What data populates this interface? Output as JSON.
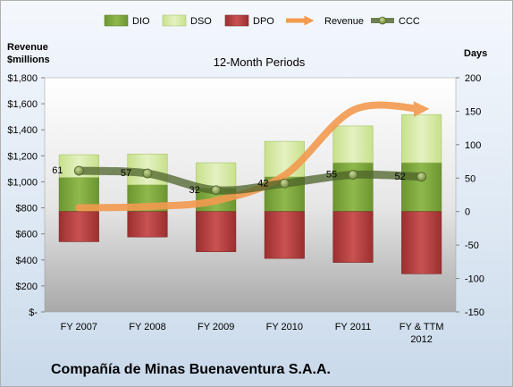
{
  "chart_data": {
    "type": "bar",
    "title": "12-Month Periods",
    "company": "Compañía de Minas Buenaventura S.A.A.",
    "left_axis": {
      "label_line1": "Revenue",
      "label_line2": "$millions",
      "ticks": [
        "$-",
        "$200",
        "$400",
        "$600",
        "$800",
        "$1,000",
        "$1,200",
        "$1,400",
        "$1,600",
        "$1,800"
      ],
      "ylim": [
        0,
        1800
      ]
    },
    "right_axis": {
      "label": "Days",
      "ticks": [
        "-150",
        "-100",
        "-50",
        "0",
        "50",
        "100",
        "150",
        "200"
      ],
      "ylim": [
        -150,
        200
      ]
    },
    "categories": [
      "FY 2007",
      "FY 2008",
      "FY 2009",
      "FY 2010",
      "FY 2011",
      "FY & TTM 2012"
    ],
    "category_lines": [
      [
        "FY 2007"
      ],
      [
        "FY 2008"
      ],
      [
        "FY 2009"
      ],
      [
        "FY 2010"
      ],
      [
        "FY 2011"
      ],
      [
        "FY & TTM",
        "2012"
      ]
    ],
    "legend": [
      "DIO",
      "DSO",
      "DPO",
      "Revenue",
      "CCC"
    ],
    "series": [
      {
        "name": "DIO",
        "axis": "right",
        "values": [
          51,
          40,
          35,
          52,
          73,
          73
        ],
        "color": "#7aa33b"
      },
      {
        "name": "DSO",
        "axis": "right",
        "values": [
          34,
          46,
          38,
          53,
          55,
          72
        ],
        "color": "#d6e9a8"
      },
      {
        "name": "DPO",
        "axis": "right",
        "values": [
          -45,
          -38,
          -60,
          -70,
          -76,
          -93
        ],
        "color": "#b53a3a"
      },
      {
        "name": "Revenue",
        "axis": "left",
        "values": [
          800,
          810,
          855,
          1050,
          1550,
          1560
        ],
        "color": "#f39a4f"
      },
      {
        "name": "CCC",
        "axis": "right",
        "values": [
          61,
          57,
          32,
          42,
          55,
          52
        ],
        "color": "#5a6f2f"
      }
    ],
    "ccc_labels": [
      "61",
      "57",
      "32",
      "42",
      "55",
      "52"
    ],
    "legend_position": "top",
    "grid": false
  }
}
